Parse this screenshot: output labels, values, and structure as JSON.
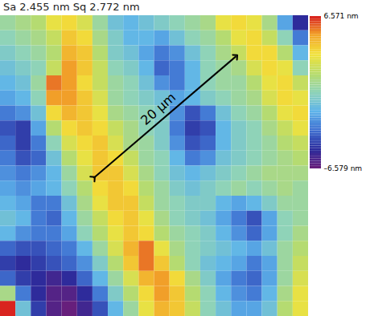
{
  "chart_data": {
    "type": "heatmap",
    "title": "Sa 2.455 nm Sq 2.772 nm",
    "tick_labels": false,
    "cells": [
      [
        0.5,
        1,
        1.5,
        3,
        3.5,
        2.5,
        0.5,
        -1,
        -1.5,
        -1,
        -0.5,
        0,
        0.5,
        1,
        3,
        3.5,
        3,
        1,
        -2,
        -5
      ],
      [
        0,
        0.5,
        1,
        2,
        4,
        3.5,
        1,
        -0.5,
        -1.5,
        -1.5,
        -2,
        -1,
        0,
        0.5,
        1.5,
        3,
        3.5,
        2,
        0,
        -3
      ],
      [
        -0.5,
        0,
        0.5,
        1.5,
        4.5,
        4,
        1.5,
        -0.5,
        -1,
        -2,
        -3,
        -2.5,
        -1,
        0,
        1,
        2,
        3.5,
        3.5,
        1.5,
        -1.5
      ],
      [
        -1,
        -0.5,
        0,
        2,
        5,
        4,
        2,
        0,
        -0.5,
        -1.5,
        -3.5,
        -3,
        -1.5,
        0,
        0.5,
        1,
        2.5,
        3.5,
        3,
        0
      ],
      [
        -1.5,
        -1,
        0.5,
        5.5,
        5,
        3.5,
        2,
        0.5,
        0,
        -1,
        -2.5,
        -3,
        -1.5,
        0,
        0.5,
        0.5,
        1.5,
        3,
        3.5,
        2
      ],
      [
        -2,
        -1.5,
        0,
        5,
        5,
        4,
        2.5,
        0.5,
        0,
        -0.5,
        -1,
        -2,
        -1.5,
        -0.5,
        0,
        0.5,
        1,
        2.5,
        3.5,
        3
      ],
      [
        -3,
        -2.5,
        -1,
        3.5,
        4.5,
        4,
        3,
        1,
        0.5,
        0,
        -0.5,
        -2.5,
        -4,
        -3,
        -1,
        0,
        0.5,
        1.5,
        3,
        3.5
      ],
      [
        -4,
        -4.5,
        -2,
        1.5,
        3.5,
        4,
        3.5,
        2,
        1,
        0,
        -0.5,
        -3,
        -4.5,
        -4,
        -1.5,
        -0.5,
        0,
        1,
        2,
        3
      ],
      [
        -3.5,
        -4.5,
        -3,
        0,
        2.5,
        3.5,
        4,
        2.5,
        1,
        0.5,
        -0.5,
        -2.5,
        -4,
        -3.5,
        -1.5,
        -0.5,
        0,
        0.5,
        1.5,
        2
      ],
      [
        -3,
        -4,
        -3.5,
        -1,
        1.5,
        3,
        4,
        3.5,
        2,
        0.5,
        0,
        -1.5,
        -3,
        -2.5,
        -1,
        -0.5,
        0,
        0.5,
        1,
        1.5
      ],
      [
        -2.5,
        -3,
        -2.5,
        -1.5,
        0.5,
        2.5,
        4,
        4,
        2.5,
        1,
        0,
        -1,
        -1.5,
        -1,
        -0.5,
        0,
        0.5,
        1,
        1,
        1
      ],
      [
        -2,
        -2.5,
        -2,
        -1.5,
        0,
        1.5,
        3.5,
        4,
        3.5,
        1.5,
        0.5,
        -0.5,
        -1,
        -0.5,
        0,
        0.5,
        0,
        0.5,
        1,
        0.5
      ],
      [
        -1.5,
        -2,
        -3,
        -3,
        -1,
        1,
        3,
        4,
        4,
        2,
        0.5,
        0,
        -0.5,
        -0.5,
        -1.5,
        -2,
        -1.5,
        -0.5,
        0.5,
        0.5
      ],
      [
        -1,
        -1.5,
        -3,
        -3.5,
        -1.5,
        0.5,
        2,
        3.5,
        4,
        3,
        1,
        0,
        -0.5,
        -1,
        -2,
        -3,
        -4,
        -2,
        0,
        0.5
      ],
      [
        -1.5,
        -2.5,
        -3,
        -3,
        -2,
        0,
        1.5,
        3,
        4,
        3.5,
        1.5,
        0.5,
        0,
        -0.5,
        -1.5,
        -2.5,
        -3.5,
        -2,
        0,
        1
      ],
      [
        -3.5,
        -4,
        -4,
        -3.5,
        -3,
        -1.5,
        0.5,
        2.5,
        4.5,
        5.5,
        3,
        1,
        0,
        -0.5,
        -1,
        -1.5,
        -2,
        -1,
        0.5,
        1.5
      ],
      [
        -4.5,
        -5,
        -4.5,
        -4,
        -3.5,
        -2.5,
        -0.5,
        1.5,
        4,
        5.5,
        4,
        1.5,
        0,
        -1,
        -1.5,
        -2,
        -3,
        -2,
        0.5,
        2
      ],
      [
        -3.5,
        -4.5,
        -5,
        -5.5,
        -5,
        -3.5,
        -1.5,
        0.5,
        2.5,
        4.5,
        5,
        3.5,
        1,
        -0.5,
        -2,
        -3,
        -3.5,
        -2,
        0.5,
        2.5
      ],
      [
        1,
        -3,
        -5,
        -6,
        -6,
        -5,
        -3,
        -0.5,
        1.5,
        3.5,
        5,
        4,
        1.5,
        0,
        -1.5,
        -2.5,
        -3,
        -1.5,
        1,
        3
      ],
      [
        6.5,
        -1,
        -4.5,
        -6,
        -6.5,
        -5.5,
        -4,
        -1.5,
        0.5,
        3,
        4.5,
        4,
        2,
        0,
        -1,
        -2,
        -2,
        -1,
        1.5,
        3
      ]
    ],
    "colorbar": {
      "range": [
        -6.579,
        6.571
      ],
      "ticks": [
        {
          "value": 6.571,
          "label": "6.571 nm"
        },
        {
          "value": -6.579,
          "label": "–6.579 nm"
        }
      ]
    },
    "annotations": [
      {
        "text": "20 µm",
        "from": [
          6.05,
          10.8
        ],
        "to": [
          15.3,
          2.7
        ]
      }
    ]
  }
}
